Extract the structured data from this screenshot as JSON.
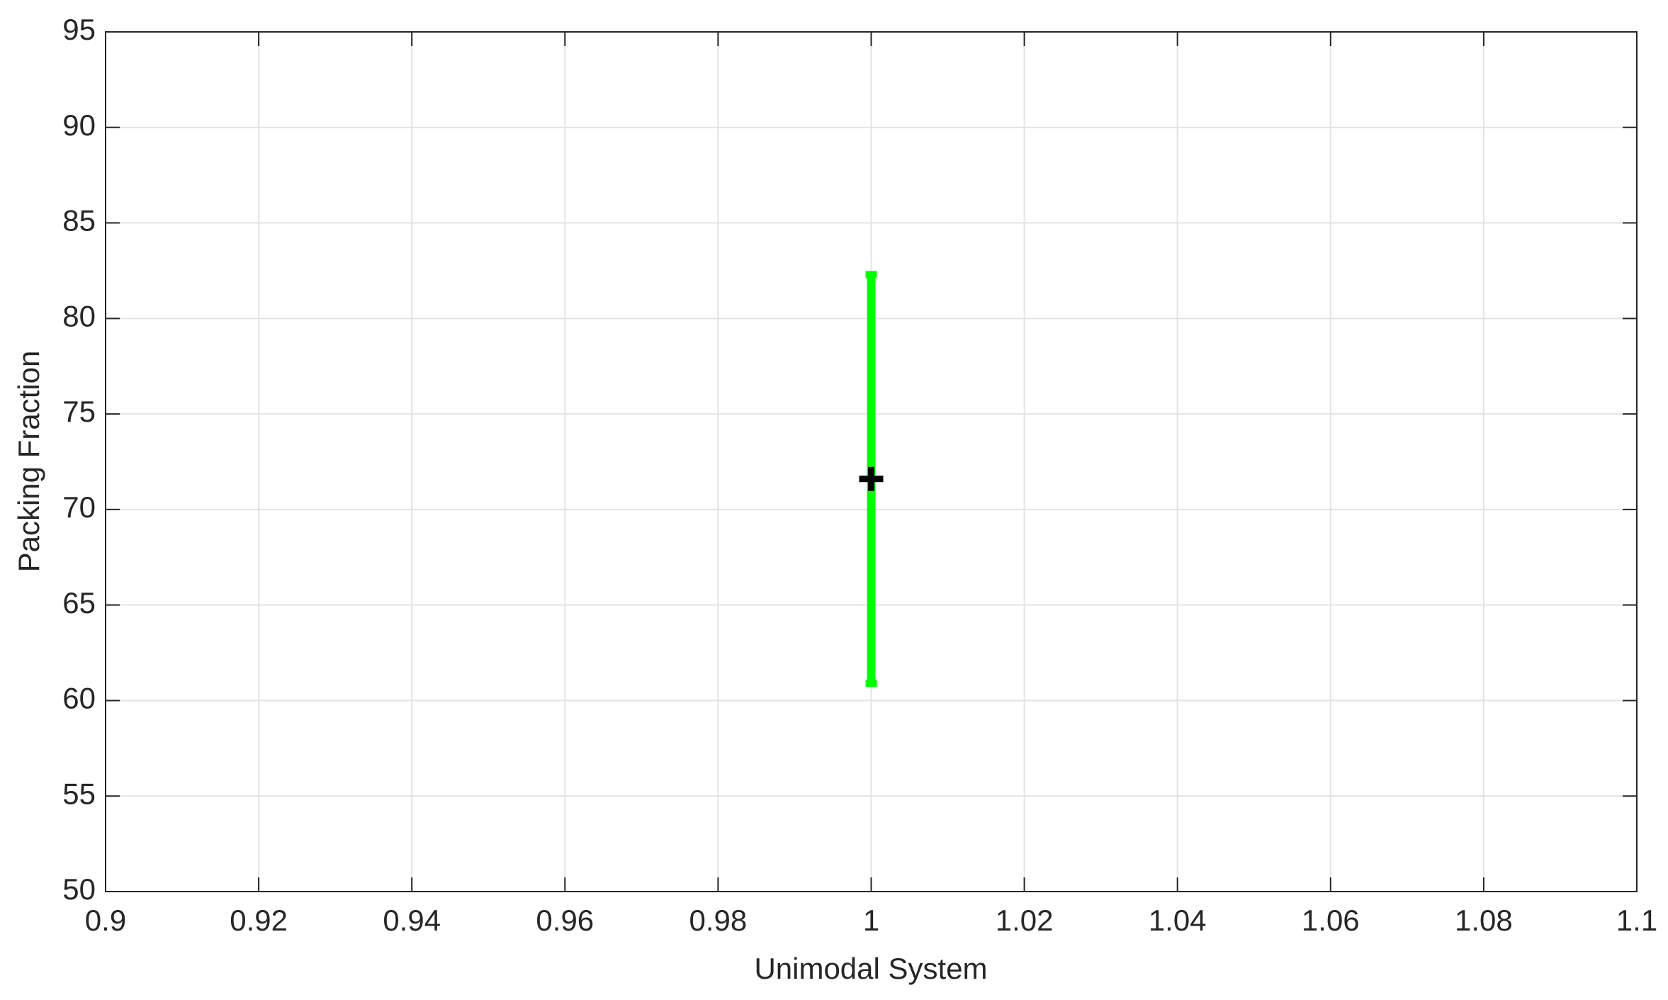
{
  "chart_data": {
    "type": "errorbar",
    "x_label": "Unimodal System",
    "y_label": "Packing Fraction",
    "x": [
      1
    ],
    "values": [
      71.6
    ],
    "errors": [
      10.7
    ],
    "color": "#00ff00",
    "marker_color": "#000000",
    "xlim": [
      0.9,
      1.1
    ],
    "xticks": [
      0.9,
      0.92,
      0.94,
      0.96,
      0.98,
      1,
      1.02,
      1.04,
      1.06,
      1.08,
      1.1
    ],
    "ylim": [
      50,
      95
    ],
    "yticks": [
      50,
      55,
      60,
      65,
      70,
      75,
      80,
      85,
      90,
      95
    ],
    "grid": true
  }
}
